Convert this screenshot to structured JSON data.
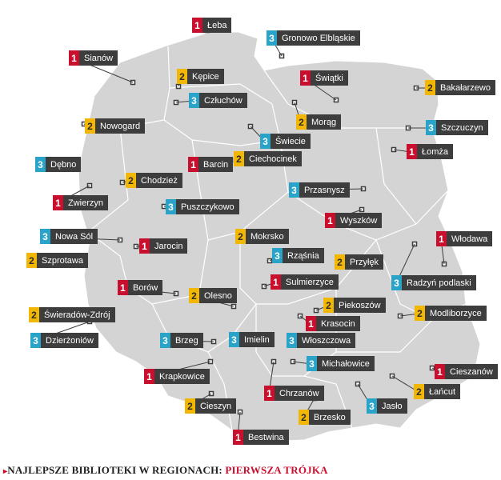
{
  "caption": {
    "arrow": "▸",
    "prefix": "NAJLEPSZE BIBLIOTEKI W REGIONACH: ",
    "highlight": "PIERWSZA TRÓJKA"
  },
  "colors": {
    "rank_1": "#c8102e",
    "rank_2": "#f2b705",
    "rank_3": "#2aa3c8",
    "label_bg": "#3d3d3d",
    "map_fill": "#d4d4d4"
  },
  "markers": [
    {
      "rank": "1",
      "name": "Łeba"
    },
    {
      "rank": "3",
      "name": "Gronowo Elbląskie"
    },
    {
      "rank": "1",
      "name": "Sianów"
    },
    {
      "rank": "2",
      "name": "Kępice"
    },
    {
      "rank": "1",
      "name": "Świątki"
    },
    {
      "rank": "2",
      "name": "Bakałarzewo"
    },
    {
      "rank": "3",
      "name": "Człuchów"
    },
    {
      "rank": "2",
      "name": "Nowogard"
    },
    {
      "rank": "2",
      "name": "Morąg"
    },
    {
      "rank": "3",
      "name": "Świecie"
    },
    {
      "rank": "3",
      "name": "Szczuczyn"
    },
    {
      "rank": "1",
      "name": "Łomża"
    },
    {
      "rank": "2",
      "name": "Ciechocinek"
    },
    {
      "rank": "3",
      "name": "Dębno"
    },
    {
      "rank": "1",
      "name": "Barcin"
    },
    {
      "rank": "2",
      "name": "Chodzież"
    },
    {
      "rank": "3",
      "name": "Przasnysz"
    },
    {
      "rank": "1",
      "name": "Zwierzyn"
    },
    {
      "rank": "3",
      "name": "Puszczykowo"
    },
    {
      "rank": "1",
      "name": "Wyszków"
    },
    {
      "rank": "3",
      "name": "Nowa Sól"
    },
    {
      "rank": "2",
      "name": "Mokrsko"
    },
    {
      "rank": "1",
      "name": "Włodawa"
    },
    {
      "rank": "1",
      "name": "Jarocin"
    },
    {
      "rank": "2",
      "name": "Szprotawa"
    },
    {
      "rank": "3",
      "name": "Rząśnia"
    },
    {
      "rank": "2",
      "name": "Przyłęk"
    },
    {
      "rank": "1",
      "name": "Borów"
    },
    {
      "rank": "1",
      "name": "Sulmierzyce"
    },
    {
      "rank": "3",
      "name": "Radzyń podlaski"
    },
    {
      "rank": "2",
      "name": "Olesno"
    },
    {
      "rank": "2",
      "name": "Piekoszów"
    },
    {
      "rank": "2",
      "name": "Świeradów-Zdrój"
    },
    {
      "rank": "2",
      "name": "Modliborzyce"
    },
    {
      "rank": "1",
      "name": "Krasocin"
    },
    {
      "rank": "3",
      "name": "Dzierżoniów"
    },
    {
      "rank": "3",
      "name": "Brzeg"
    },
    {
      "rank": "3",
      "name": "Imielin"
    },
    {
      "rank": "3",
      "name": "Włoszczowa"
    },
    {
      "rank": "3",
      "name": "Michałowice"
    },
    {
      "rank": "1",
      "name": "Cieszanów"
    },
    {
      "rank": "1",
      "name": "Krapkowice"
    },
    {
      "rank": "1",
      "name": "Chrzanów"
    },
    {
      "rank": "2",
      "name": "Łańcut"
    },
    {
      "rank": "2",
      "name": "Cieszyn"
    },
    {
      "rank": "2",
      "name": "Brzesko"
    },
    {
      "rank": "3",
      "name": "Jasło"
    },
    {
      "rank": "1",
      "name": "Bestwina"
    }
  ]
}
